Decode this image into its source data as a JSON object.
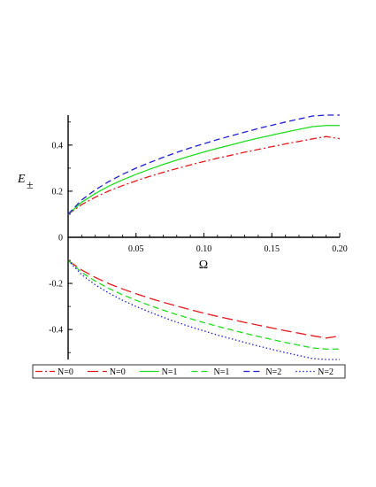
{
  "chart_data": {
    "type": "line",
    "xlabel": "Ω",
    "ylabel_main": "E",
    "ylabel_sub": "±",
    "xlim": [
      0,
      0.2
    ],
    "ylim": [
      -0.53,
      0.53
    ],
    "x_ticks": [
      0.05,
      0.1,
      0.15,
      0.2
    ],
    "x_tick_labels": [
      "0.05",
      "0.10",
      "0.15",
      "0.20"
    ],
    "y_ticks": [
      -0.4,
      -0.2,
      0,
      0.2,
      0.4
    ],
    "y_tick_labels": [
      "-0.4",
      "-0.2",
      "0",
      "0.2",
      "0.4"
    ],
    "grid": false,
    "legend_placement": "bottom",
    "x": [
      0,
      0.01,
      0.02,
      0.03,
      0.04,
      0.05,
      0.06,
      0.07,
      0.08,
      0.09,
      0.1,
      0.11,
      0.12,
      0.13,
      0.14,
      0.15,
      0.16,
      0.17,
      0.18,
      0.19,
      0.2
    ],
    "series": [
      {
        "name": "N=0",
        "color": "#e41a1c",
        "style": "dashdot",
        "values": [
          0.1,
          0.142,
          0.174,
          0.201,
          0.224,
          0.245,
          0.264,
          0.282,
          0.298,
          0.314,
          0.329,
          0.343,
          0.356,
          0.369,
          0.381,
          0.393,
          0.405,
          0.416,
          0.427,
          0.437,
          0.428
        ]
      },
      {
        "name": "N=0",
        "color": "#e41a1c",
        "style": "longdash",
        "values": [
          -0.1,
          -0.142,
          -0.174,
          -0.201,
          -0.224,
          -0.245,
          -0.264,
          -0.282,
          -0.298,
          -0.314,
          -0.329,
          -0.343,
          -0.356,
          -0.369,
          -0.381,
          -0.393,
          -0.405,
          -0.416,
          -0.427,
          -0.437,
          -0.428
        ]
      },
      {
        "name": "N=1",
        "color": "#1fdc1f",
        "style": "solid",
        "values": [
          0.1,
          0.152,
          0.19,
          0.222,
          0.249,
          0.273,
          0.295,
          0.316,
          0.335,
          0.353,
          0.37,
          0.386,
          0.401,
          0.416,
          0.43,
          0.443,
          0.456,
          0.468,
          0.48,
          0.485,
          0.485
        ]
      },
      {
        "name": "N=1",
        "color": "#1fdc1f",
        "style": "dash",
        "values": [
          -0.1,
          -0.152,
          -0.19,
          -0.222,
          -0.249,
          -0.273,
          -0.295,
          -0.316,
          -0.335,
          -0.353,
          -0.37,
          -0.386,
          -0.401,
          -0.416,
          -0.43,
          -0.443,
          -0.456,
          -0.468,
          -0.48,
          -0.485,
          -0.485
        ]
      },
      {
        "name": "N=2",
        "color": "#1f1fd0",
        "style": "dash",
        "values": [
          0.1,
          0.162,
          0.206,
          0.242,
          0.273,
          0.3,
          0.324,
          0.347,
          0.368,
          0.388,
          0.406,
          0.424,
          0.44,
          0.456,
          0.472,
          0.486,
          0.5,
          0.513,
          0.526,
          0.53,
          0.53
        ]
      },
      {
        "name": "N=2",
        "color": "#1f1fd0",
        "style": "dot",
        "values": [
          -0.1,
          -0.162,
          -0.206,
          -0.242,
          -0.273,
          -0.3,
          -0.324,
          -0.347,
          -0.368,
          -0.388,
          -0.406,
          -0.424,
          -0.44,
          -0.456,
          -0.472,
          -0.486,
          -0.5,
          -0.513,
          -0.526,
          -0.53,
          -0.53
        ]
      }
    ]
  }
}
